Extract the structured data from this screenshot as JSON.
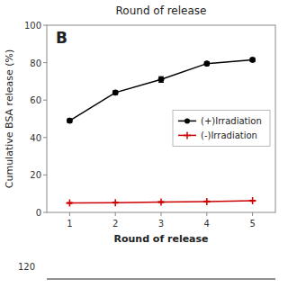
{
  "chart_data": {
    "type": "line",
    "title": "Round of release",
    "xlabel": "Round of release",
    "ylabel": "Cumulative BSA release (%)",
    "annotations": [
      "B",
      "120"
    ],
    "x": [
      1,
      2,
      3,
      4,
      5
    ],
    "series": [
      {
        "name": "(+)Irradiation",
        "color": "#000000",
        "marker": "circle",
        "values": [
          49,
          64,
          71,
          79.5,
          81.5
        ],
        "errors": [
          1.0,
          1.0,
          1.5,
          1.0,
          1.0
        ]
      },
      {
        "name": "(-)Irradiation",
        "color": "#cc0000",
        "marker": "plus",
        "values": [
          5,
          5.2,
          5.5,
          5.8,
          6.2
        ],
        "errors": [
          0.3,
          0.3,
          0.3,
          0.3,
          0.3
        ]
      }
    ],
    "xlim": [
      0.5,
      5.5
    ],
    "xticks": [
      1,
      2,
      3,
      4,
      5
    ],
    "ylim": [
      0,
      100
    ],
    "yticks": [
      0,
      20,
      40,
      60,
      80,
      100
    ],
    "legend": "right",
    "grid": false
  }
}
